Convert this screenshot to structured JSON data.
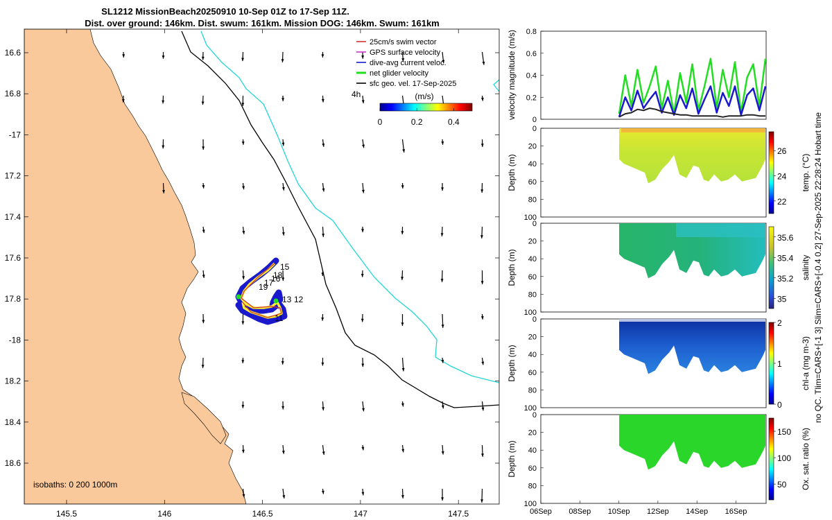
{
  "chart_data": {
    "type": "composite",
    "title_line1": "SL1212 MissionBeach20250910 10-Sep 01Z to 17-Sep 11Z.",
    "title_line2": "Dist. over ground: 146km. Dist. swum: 161km. Mission DOG: 146km. Swum: 161km",
    "map": {
      "lon_ticks": [
        "145.5",
        "146",
        "146.5",
        "147",
        "147.5"
      ],
      "lat_ticks": [
        "16.6",
        "16.8",
        "-17",
        "17.2",
        "17.4",
        "17.6",
        "17.8",
        "-18",
        "18.2",
        "18.4",
        "18.6"
      ],
      "isobath_note": "isobaths: 0   200  1000m",
      "legend": [
        "25cm/s swim vector",
        "GPS surface velocity",
        "dive-avg current veloc.",
        "net glider velocity",
        "sfc geo. vel. 17-Sep-2025"
      ],
      "legend_extra": "4h",
      "colorbar_title": "(m/s)",
      "colorbar_ticks": [
        "0",
        "0.2",
        "0.4"
      ],
      "track_labels": [
        "15",
        "18",
        "16",
        "17",
        "19",
        "13",
        "12",
        "11"
      ],
      "colors": {
        "land": "#f9c89b",
        "isobath_200": "#000000",
        "isobath_1000": "#22d6d6"
      }
    },
    "velocity": {
      "ylabel": "velocity magnitude (m/s)",
      "yticks": [
        "0",
        "0.2",
        "0.4",
        "0.6",
        "0.8"
      ],
      "ylim": [
        0,
        0.8
      ],
      "series": [
        {
          "name": "net glider velocity",
          "color": "#22dd22",
          "values": [
            0.05,
            0.4,
            0.12,
            0.45,
            0.15,
            0.3,
            0.48,
            0.1,
            0.35,
            0.05,
            0.42,
            0.15,
            0.5,
            0.08,
            0.3,
            0.55,
            0.1,
            0.45,
            0.2,
            0.52,
            0.06,
            0.38,
            0.5,
            0.12,
            0.55
          ]
        },
        {
          "name": "dive-avg current veloc.",
          "color": "#1a1acc",
          "values": [
            0.02,
            0.2,
            0.08,
            0.26,
            0.1,
            0.18,
            0.25,
            0.06,
            0.2,
            0.04,
            0.22,
            0.1,
            0.28,
            0.05,
            0.18,
            0.3,
            0.06,
            0.24,
            0.12,
            0.3,
            0.04,
            0.22,
            0.28,
            0.08,
            0.3
          ]
        },
        {
          "name": "sfc geo. vel.",
          "color": "#222222",
          "values": [
            0.02,
            0.05,
            0.06,
            0.09,
            0.08,
            0.1,
            0.09,
            0.07,
            0.06,
            0.05,
            0.04,
            0.04,
            0.03,
            0.03,
            0.03,
            0.03,
            0.03,
            0.02,
            0.03,
            0.03,
            0.03,
            0.04,
            0.04,
            0.03,
            0.03
          ]
        }
      ]
    },
    "profiles": [
      {
        "ylabel": "Depth (m)",
        "cblabel": "temp. (°C)",
        "cbticks": [
          "22",
          "24",
          "26"
        ],
        "cbrange": [
          21,
          27.5
        ]
      },
      {
        "ylabel": "Depth (m)",
        "cblabel": "salinity",
        "cbticks": [
          "35",
          "35.2",
          "35.4",
          "35.6"
        ],
        "cbrange": [
          34.9,
          35.7
        ]
      },
      {
        "ylabel": "Depth (m)",
        "cblabel": "chl-a (mg m-3)",
        "cbticks": [
          "0",
          "1",
          "2"
        ],
        "cbrange": [
          0,
          2
        ]
      },
      {
        "ylabel": "Depth (m)",
        "cblabel": "Ox. sat. ratio (%)",
        "cbticks": [
          "50",
          "100",
          "150"
        ],
        "cbrange": [
          20,
          175
        ]
      }
    ],
    "depth_ticks": [
      "0",
      "20",
      "40",
      "60",
      "80",
      "100"
    ],
    "time_ticks": [
      "06Sep",
      "08Sep",
      "10Sep",
      "12Sep",
      "14Sep",
      "16Sep"
    ],
    "right_caption": "no QC. Tlim=CARS+[-1 3] Slim=CARS+[-0.4 0.2] 27-Sep-2025 22:28:24 Hobart time"
  }
}
